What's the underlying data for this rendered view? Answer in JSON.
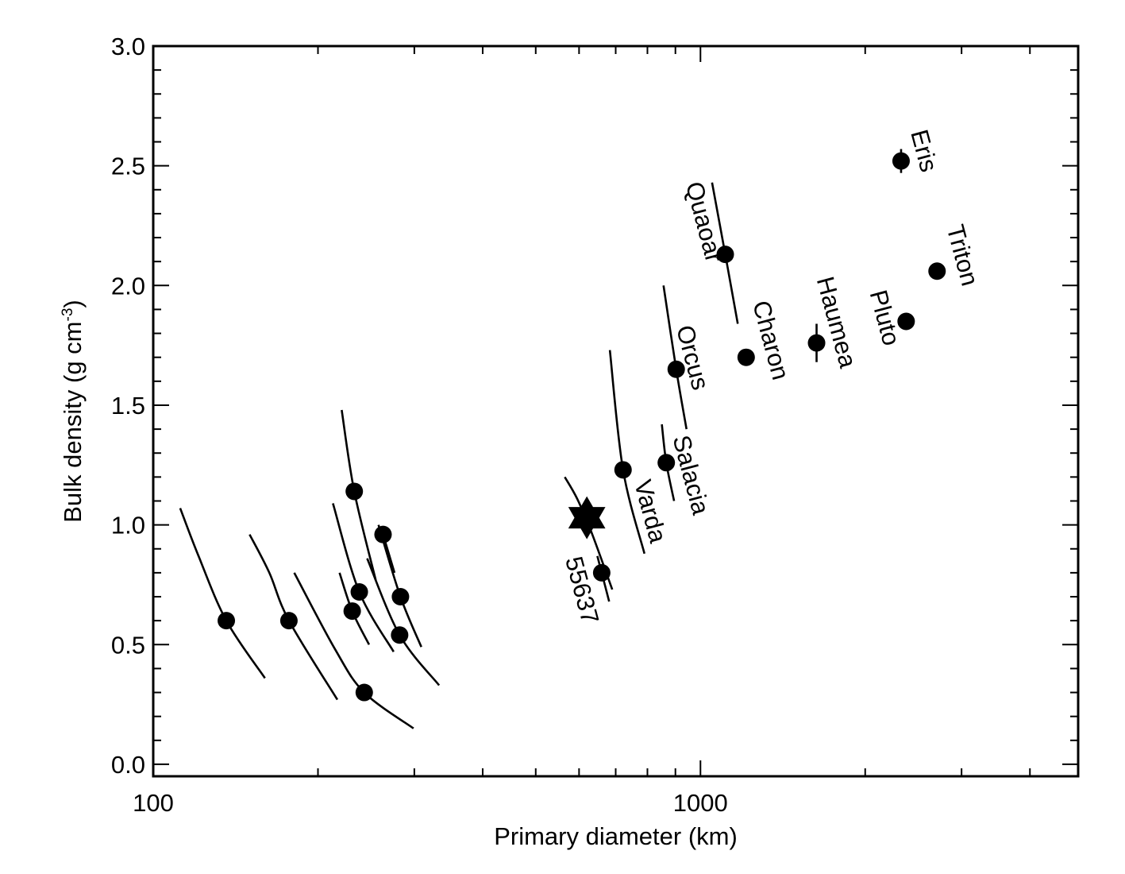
{
  "chart_data": {
    "type": "scatter",
    "title": "",
    "xlabel": "Primary diameter (km)",
    "ylabel": "Bulk density (g cm",
    "ylabel_unit_sup": "-3",
    "ylabel_close": ")",
    "x_scale": "log",
    "xlim": [
      100,
      4900
    ],
    "ylim": [
      -0.05,
      3.0
    ],
    "x_ticks": [
      {
        "value": 100,
        "label": "100"
      },
      {
        "value": 1000,
        "label": "1000"
      }
    ],
    "y_ticks": [
      {
        "value": 0.0,
        "label": "0.0"
      },
      {
        "value": 0.5,
        "label": "0.5"
      },
      {
        "value": 1.0,
        "label": "1.0"
      },
      {
        "value": 1.5,
        "label": "1.5"
      },
      {
        "value": 2.0,
        "label": "2.0"
      },
      {
        "value": 2.5,
        "label": "2.5"
      },
      {
        "value": 3.0,
        "label": "3.0"
      }
    ],
    "points": [
      {
        "name": "",
        "x": 136,
        "y": 0.6,
        "curve": [
          [
            112,
            1.07
          ],
          [
            121,
            0.87
          ],
          [
            136,
            0.6
          ],
          [
            160,
            0.36
          ]
        ]
      },
      {
        "name": "",
        "x": 177,
        "y": 0.6,
        "curve": [
          [
            150,
            0.96
          ],
          [
            163,
            0.8
          ],
          [
            177,
            0.6
          ],
          [
            217,
            0.27
          ]
        ]
      },
      {
        "name": "",
        "x": 243,
        "y": 0.3,
        "curve": [
          [
            181,
            0.8
          ],
          [
            215,
            0.48
          ],
          [
            243,
            0.3
          ],
          [
            299,
            0.15
          ]
        ]
      },
      {
        "name": "",
        "x": 233,
        "y": 1.14,
        "curve": [
          [
            221,
            1.48
          ],
          [
            233,
            1.14
          ],
          [
            255,
            0.77
          ]
        ]
      },
      {
        "name": "",
        "x": 238,
        "y": 0.72,
        "curve": [
          [
            213,
            1.09
          ],
          [
            238,
            0.72
          ],
          [
            275,
            0.47
          ]
        ]
      },
      {
        "name": "",
        "x": 231,
        "y": 0.64,
        "curve": [
          [
            219,
            0.8
          ],
          [
            231,
            0.64
          ],
          [
            248,
            0.5
          ]
        ]
      },
      {
        "name": "",
        "x": 283,
        "y": 0.7,
        "curve": [
          [
            258,
            1.0
          ],
          [
            283,
            0.7
          ],
          [
            309,
            0.49
          ]
        ]
      },
      {
        "name": "",
        "x": 282,
        "y": 0.54,
        "curve": [
          [
            246,
            0.86
          ],
          [
            282,
            0.54
          ],
          [
            333,
            0.33
          ]
        ]
      },
      {
        "name": "",
        "x": 263,
        "y": 0.96,
        "curve": [
          [
            263,
            0.96
          ],
          [
            276,
            0.8
          ]
        ]
      },
      {
        "name": "55637",
        "x": 660,
        "y": 0.8,
        "curve": [
          [
            648,
            0.87
          ],
          [
            660,
            0.8
          ],
          [
            681,
            0.68
          ]
        ]
      },
      {
        "name": "Varda",
        "x": 722,
        "y": 1.23,
        "curve": [
          [
            683,
            1.73
          ],
          [
            722,
            1.23
          ],
          [
            790,
            0.88
          ]
        ]
      },
      {
        "name": "Salacia",
        "x": 866,
        "y": 1.26,
        "curve": [
          [
            850,
            1.42
          ],
          [
            866,
            1.26
          ],
          [
            895,
            1.1
          ]
        ]
      },
      {
        "name": "Orcus",
        "x": 903,
        "y": 1.65,
        "curve": [
          [
            856,
            2.0
          ],
          [
            903,
            1.65
          ],
          [
            943,
            1.4
          ]
        ]
      },
      {
        "name": "Quaoar",
        "x": 1110,
        "y": 2.13,
        "curve": [
          [
            1050,
            2.43
          ],
          [
            1110,
            2.13
          ],
          [
            1170,
            1.84
          ]
        ]
      },
      {
        "name": "Charon",
        "x": 1212,
        "y": 1.7
      },
      {
        "name": "Haumea",
        "x": 1630,
        "y": 1.76,
        "curve": [
          [
            1630,
            1.84
          ],
          [
            1630,
            1.68
          ]
        ]
      },
      {
        "name": "Pluto",
        "x": 2376,
        "y": 1.85
      },
      {
        "name": "Eris",
        "x": 2326,
        "y": 2.52,
        "curve": [
          [
            2326,
            2.57
          ],
          [
            2326,
            2.47
          ]
        ]
      },
      {
        "name": "Triton",
        "x": 2706,
        "y": 2.06
      }
    ],
    "star": {
      "name": "",
      "x": 620,
      "y": 1.03,
      "curve": [
        [
          565,
          1.2
        ],
        [
          595,
          1.11
        ],
        [
          632,
          0.97
        ],
        [
          690,
          0.73
        ]
      ]
    },
    "grid": false,
    "legend": "none"
  }
}
